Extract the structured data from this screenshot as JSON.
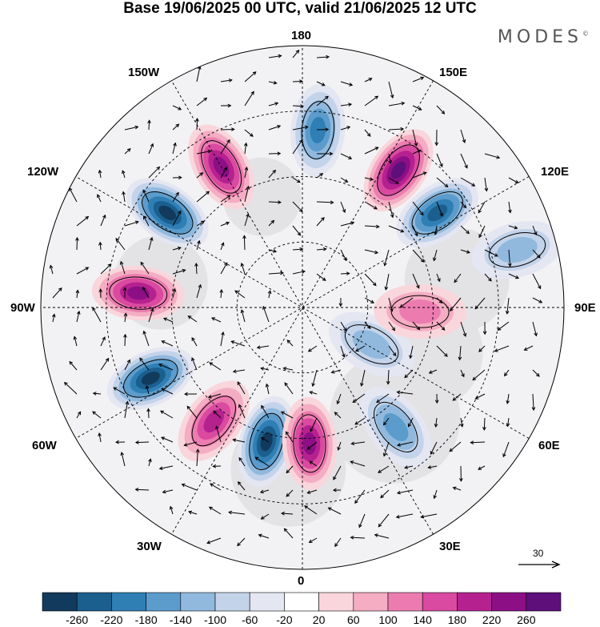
{
  "title": "Base 19/06/2025 00 UTC, valid 21/06/2025 12 UTC",
  "brand": "MODES",
  "brand_mark": "©",
  "longitude_labels": {
    "top": "180",
    "bottom": "0",
    "left": "90W",
    "right": "90E",
    "upper_left_outer": "150W",
    "upper_left_inner": "120W",
    "upper_right_outer": "150E",
    "upper_right_inner": "120E",
    "lower_left_inner": "60W",
    "lower_left_outer": "30W",
    "lower_right_inner": "60E",
    "lower_right_outer": "30E"
  },
  "wind_reference": {
    "label": "30",
    "icon": "arrow-right-icon"
  },
  "colorbar": {
    "ticks": [
      "-260",
      "-220",
      "-180",
      "-140",
      "-100",
      "-60",
      "-20",
      "20",
      "60",
      "100",
      "140",
      "180",
      "220",
      "260"
    ],
    "colors": [
      "#123a5c",
      "#1b5f8e",
      "#2f7fb5",
      "#5b9ccc",
      "#90b9dd",
      "#c3d3ea",
      "#e4e6f2",
      "#ffffff",
      "#f9d6dc",
      "#f4adc3",
      "#ec7cb0",
      "#d94aa0",
      "#b62190",
      "#8c0f85",
      "#5e0f7a"
    ]
  },
  "anomalies": [
    {
      "lon": 175,
      "r": 0.68,
      "sign": -1,
      "level": 4
    },
    {
      "lon": 145,
      "r": 0.64,
      "sign": 1,
      "level": 6
    },
    {
      "lon": 125,
      "r": 0.63,
      "sign": -1,
      "level": 5
    },
    {
      "lon": -150,
      "r": 0.62,
      "sign": 1,
      "level": 5
    },
    {
      "lon": -125,
      "r": 0.63,
      "sign": -1,
      "level": 6
    },
    {
      "lon": -95,
      "r": 0.63,
      "sign": 1,
      "level": 5
    },
    {
      "lon": -65,
      "r": 0.64,
      "sign": -1,
      "level": 6
    },
    {
      "lon": -38,
      "r": 0.55,
      "sign": 1,
      "level": 4
    },
    {
      "lon": -15,
      "r": 0.53,
      "sign": -1,
      "level": 6
    },
    {
      "lon": 3,
      "r": 0.52,
      "sign": 1,
      "level": 5
    },
    {
      "lon": 38,
      "r": 0.58,
      "sign": -1,
      "level": 3
    },
    {
      "lon": 62,
      "r": 0.3,
      "sign": -1,
      "level": 2
    },
    {
      "lon": 88,
      "r": 0.45,
      "sign": 1,
      "level": 2
    },
    {
      "lon": 105,
      "r": 0.85,
      "sign": -1,
      "level": 2
    }
  ]
}
